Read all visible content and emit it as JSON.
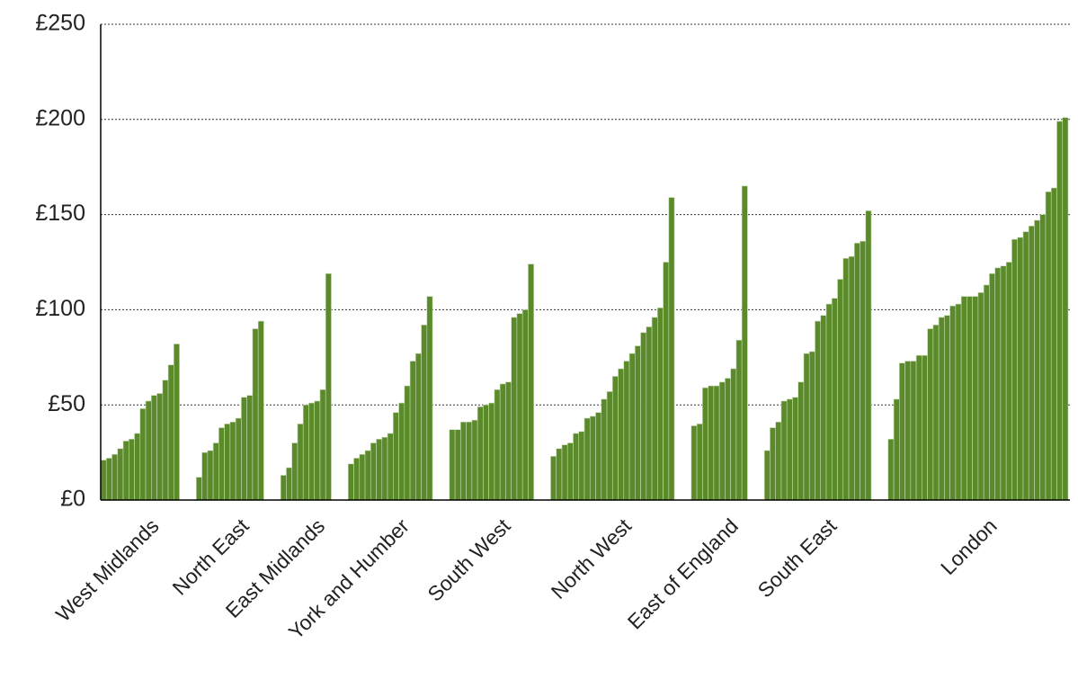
{
  "chart_data": {
    "type": "grouped_bars",
    "color": "#5a8a2a",
    "grid": true,
    "ylim": [
      0,
      250
    ],
    "yticks": [
      {
        "value": 0,
        "label": "£0"
      },
      {
        "value": 50,
        "label": "£50"
      },
      {
        "value": 100,
        "label": "£100"
      },
      {
        "value": 150,
        "label": "£150"
      },
      {
        "value": 200,
        "label": "£200"
      },
      {
        "value": 250,
        "label": "£250"
      }
    ],
    "groups": [
      {
        "name": "West Midlands",
        "values": [
          21,
          22,
          24,
          27,
          31,
          32,
          35,
          48,
          52,
          55,
          56,
          63,
          71,
          82
        ]
      },
      {
        "name": "North East",
        "values": [
          12,
          25,
          26,
          30,
          38,
          40,
          41,
          43,
          54,
          55,
          90,
          94
        ]
      },
      {
        "name": "East Midlands",
        "values": [
          13,
          17,
          30,
          40,
          50,
          51,
          52,
          58,
          119
        ]
      },
      {
        "name": "York and Humber",
        "values": [
          19,
          22,
          24,
          26,
          30,
          32,
          33,
          35,
          46,
          51,
          60,
          73,
          77,
          92,
          107
        ]
      },
      {
        "name": "South West",
        "values": [
          37,
          37,
          41,
          41,
          42,
          49,
          50,
          51,
          58,
          61,
          62,
          96,
          98,
          100,
          124
        ]
      },
      {
        "name": "North West",
        "values": [
          23,
          27,
          29,
          30,
          35,
          36,
          43,
          44,
          46,
          53,
          57,
          65,
          69,
          73,
          77,
          81,
          88,
          91,
          96,
          101,
          125,
          159
        ]
      },
      {
        "name": "East of England",
        "values": [
          39,
          40,
          59,
          60,
          60,
          62,
          64,
          69,
          84,
          165
        ]
      },
      {
        "name": "South East",
        "values": [
          26,
          38,
          41,
          52,
          53,
          54,
          62,
          77,
          78,
          94,
          97,
          103,
          106,
          116,
          127,
          128,
          135,
          136,
          152
        ]
      },
      {
        "name": "London",
        "values": [
          32,
          53,
          72,
          73,
          73,
          76,
          76,
          90,
          92,
          96,
          97,
          102,
          103,
          107,
          107,
          107,
          109,
          113,
          119,
          122,
          123,
          125,
          137,
          138,
          141,
          144,
          147,
          150,
          162,
          164,
          199,
          201
        ]
      }
    ]
  }
}
